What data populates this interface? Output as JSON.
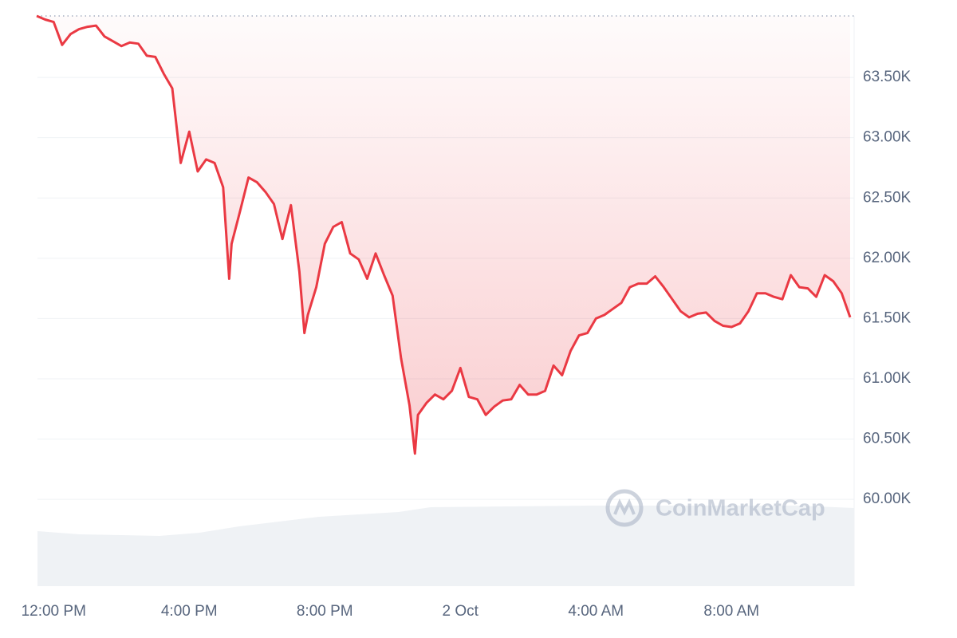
{
  "chart_data": {
    "type": "line",
    "watermark": "CoinMarketCap",
    "x": [
      11.5,
      11.75,
      12,
      12.25,
      12.5,
      12.75,
      13,
      13.25,
      13.5,
      13.75,
      14,
      14.25,
      14.5,
      14.75,
      15,
      15.25,
      15.5,
      15.75,
      16,
      16.25,
      16.5,
      16.75,
      17,
      17.18,
      17.25,
      17.5,
      17.75,
      18,
      18.25,
      18.5,
      18.75,
      19,
      19.25,
      19.4,
      19.5,
      19.75,
      20,
      20.25,
      20.5,
      20.75,
      21,
      21.25,
      21.5,
      21.75,
      22,
      22.25,
      22.5,
      22.66,
      22.75,
      23,
      23.25,
      23.5,
      23.75,
      24,
      24.25,
      24.5,
      24.75,
      25,
      25.25,
      25.5,
      25.75,
      26,
      26.25,
      26.5,
      26.75,
      27,
      27.25,
      27.5,
      27.75,
      28,
      28.25,
      28.5,
      28.75,
      29,
      29.25,
      29.5,
      29.75,
      30,
      30.25,
      30.5,
      30.75,
      31,
      31.25,
      31.5,
      31.75,
      32,
      32.25,
      32.5,
      32.75,
      33,
      33.25,
      33.5,
      33.75,
      34,
      34.25,
      34.5,
      34.75,
      35,
      35.25,
      35.5
    ],
    "series": [
      {
        "color": "#ea3943",
        "values": [
          64010,
          63980,
          63960,
          63770,
          63860,
          63900,
          63920,
          63930,
          63840,
          63800,
          63760,
          63790,
          63780,
          63680,
          63670,
          63530,
          63410,
          62790,
          63050,
          62720,
          62820,
          62790,
          62590,
          61830,
          62120,
          62390,
          62670,
          62630,
          62550,
          62450,
          62160,
          62440,
          61890,
          61380,
          61530,
          61760,
          62120,
          62260,
          62300,
          62040,
          61990,
          61830,
          62040,
          61860,
          61690,
          61170,
          60780,
          60380,
          60700,
          60800,
          60870,
          60830,
          60900,
          61090,
          60850,
          60830,
          60700,
          60770,
          60820,
          60830,
          60950,
          60870,
          60870,
          60900,
          61110,
          61030,
          61230,
          61360,
          61380,
          61500,
          61530,
          61580,
          61630,
          61760,
          61790,
          61790,
          61850,
          61760,
          61660,
          61560,
          61510,
          61540,
          61550,
          61480,
          61440,
          61430,
          61460,
          61560,
          61710,
          61710,
          61680,
          61660,
          61860,
          61760,
          61750,
          61680,
          61860,
          61810,
          61710,
          61510
        ]
      }
    ],
    "xlim": [
      11.5,
      35.5
    ],
    "xticks": [
      {
        "value": 12,
        "label": "12:00 PM"
      },
      {
        "value": 16,
        "label": "4:00 PM"
      },
      {
        "value": 20,
        "label": "8:00 PM"
      },
      {
        "value": 24,
        "label": "2 Oct"
      },
      {
        "value": 28,
        "label": "4:00 AM"
      },
      {
        "value": 32,
        "label": "8:00 AM"
      }
    ],
    "ylim": [
      59280,
      64010
    ],
    "yticks": [
      {
        "value": 60000,
        "label": "60.00K"
      },
      {
        "value": 60500,
        "label": "60.50K"
      },
      {
        "value": 61000,
        "label": "61.00K"
      },
      {
        "value": 61500,
        "label": "61.50K"
      },
      {
        "value": 62000,
        "label": "62.00K"
      },
      {
        "value": 62500,
        "label": "62.50K"
      },
      {
        "value": 63000,
        "label": "63.00K"
      },
      {
        "value": 63500,
        "label": "63.50K"
      }
    ],
    "grid": true
  }
}
